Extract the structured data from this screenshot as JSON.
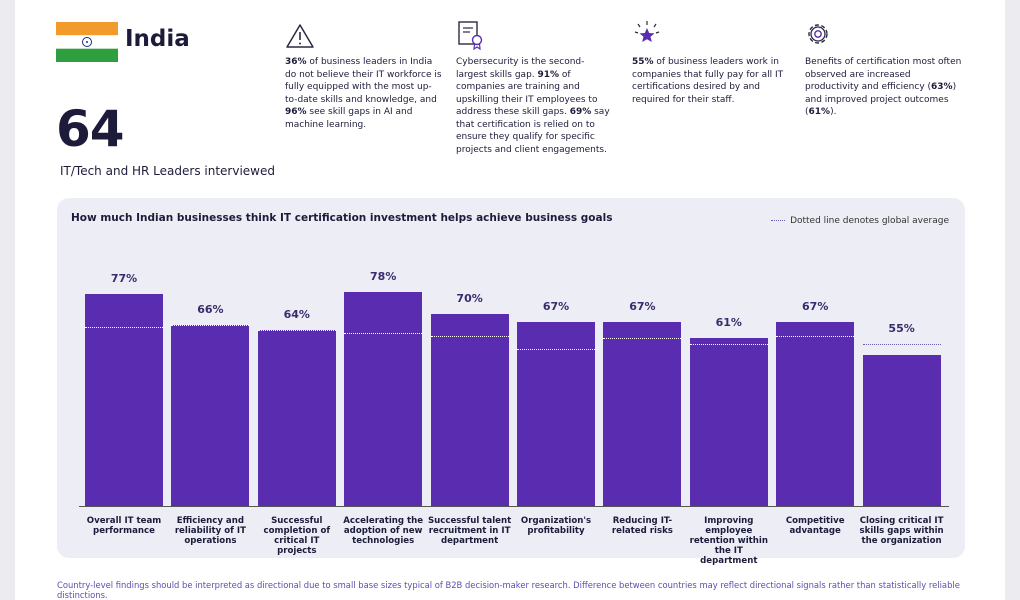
{
  "header": {
    "country": "India",
    "count": "64",
    "count_caption": "IT/Tech and HR Leaders interviewed"
  },
  "stats": [
    {
      "parts": [
        {
          "text": "36%",
          "bold": true
        },
        {
          "text": " of business leaders in India do not believe their IT workforce is fully equipped with the most up-to-date skills and knowledge, and "
        },
        {
          "text": "96%",
          "bold": true
        },
        {
          "text": " see skill gaps in AI and machine learning."
        }
      ]
    },
    {
      "parts": [
        {
          "text": "Cybersecurity is the second-largest skills gap. "
        },
        {
          "text": "91%",
          "bold": true
        },
        {
          "text": " of companies are training and upskilling their IT employees to address these skill gaps. "
        },
        {
          "text": "69%",
          "bold": true
        },
        {
          "text": " say that certification is relied on to ensure they qualify for specific projects and client engagements."
        }
      ]
    },
    {
      "parts": [
        {
          "text": "55%",
          "bold": true
        },
        {
          "text": " of business leaders work in companies that fully pay for all IT certifications desired by and required for their staff."
        }
      ]
    },
    {
      "parts": [
        {
          "text": "Benefits of certification most often observed are increased productivity and efficiency ("
        },
        {
          "text": "63%",
          "bold": true
        },
        {
          "text": ") and improved project outcomes ("
        },
        {
          "text": "61%",
          "bold": true
        },
        {
          "text": ")."
        }
      ]
    }
  ],
  "chart_data": {
    "type": "bar",
    "title": "How much Indian businesses think IT certification investment helps achieve business goals",
    "legend": "Dotted line denotes global average",
    "categories": [
      "Overall IT team performance",
      "Efficiency and reliability of IT operations",
      "Successful completion of critical IT projects",
      "Accelerating the adoption of new technologies",
      "Successful talent recruitment in IT department",
      "Organization's profitability",
      "Reducing IT-related risks",
      "Improving employee retention within the IT department",
      "Competitive advantage",
      "Closing critical IT skills gaps within the organization"
    ],
    "values": [
      77,
      66,
      64,
      78,
      70,
      67,
      67,
      61,
      67,
      55
    ],
    "value_labels": [
      "77%",
      "66%",
      "64%",
      "78%",
      "70%",
      "67%",
      "67%",
      "61%",
      "67%",
      "55%"
    ],
    "global_average": [
      65,
      66,
      64,
      63,
      62,
      57,
      61,
      59,
      62,
      59
    ],
    "color": "#5a2db0",
    "average_color": "#ffffff",
    "average_color_above": "#6a5fb0"
  },
  "note": "Country-level findings should be interpreted as directional due to small base sizes typical of B2B decision-maker research. Difference between countries may reflect directional signals rather than statistically reliable distinctions."
}
